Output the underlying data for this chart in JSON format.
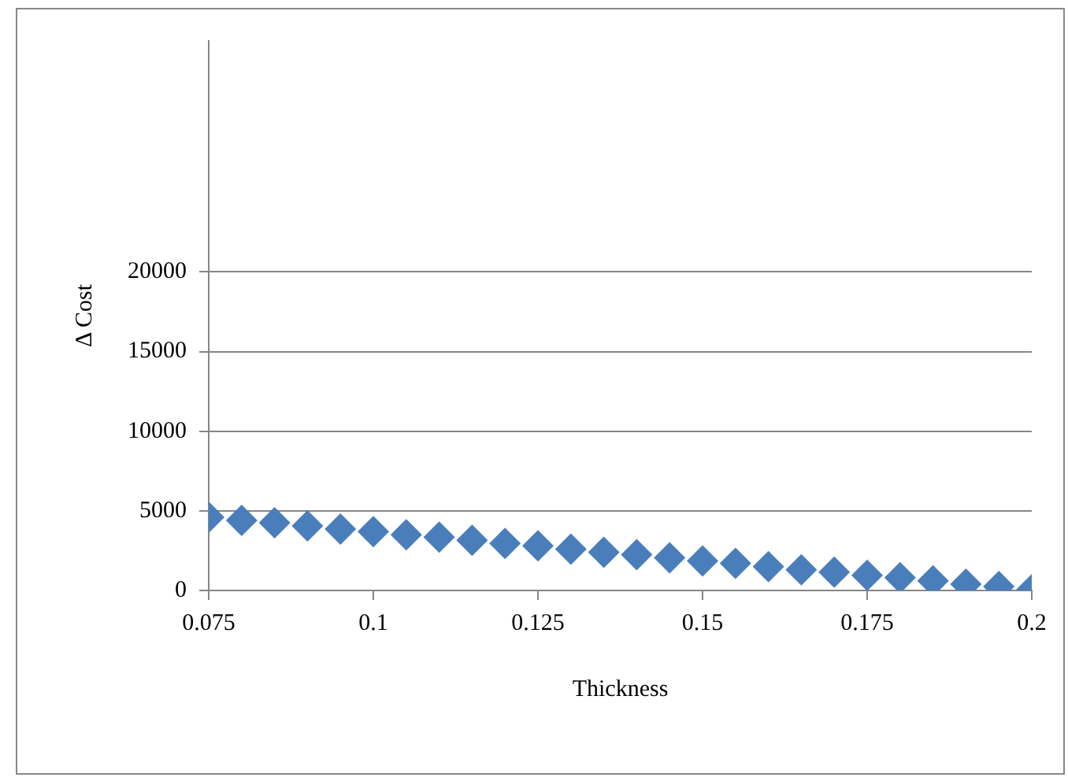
{
  "chart_data": {
    "type": "scatter",
    "xlabel": "Thickness",
    "ylabel": "Δ Cost",
    "series": [
      {
        "color": "#4a7ebb",
        "x": [
          0.075,
          0.08,
          0.085,
          0.09,
          0.095,
          0.1,
          0.105,
          0.11,
          0.115,
          0.12,
          0.125,
          0.13,
          0.135,
          0.14,
          0.145,
          0.15,
          0.155,
          0.16,
          0.165,
          0.17,
          0.175,
          0.18,
          0.185,
          0.19,
          0.195,
          0.2
        ],
        "values": [
          4600,
          4400,
          4250,
          4050,
          3850,
          3700,
          3500,
          3350,
          3150,
          2950,
          2800,
          2600,
          2400,
          2250,
          2050,
          1850,
          1700,
          1500,
          1300,
          1150,
          950,
          800,
          600,
          400,
          250,
          50
        ]
      }
    ],
    "xlim": [
      0.075,
      0.2
    ],
    "xticks": [
      0.075,
      0.1,
      0.125,
      0.15,
      0.175,
      0.2
    ],
    "ylim": [
      0,
      34500
    ],
    "yticks": [
      0,
      5000,
      10000,
      15000,
      20000
    ],
    "grid": "y",
    "legend": false,
    "marker": "diamond"
  }
}
